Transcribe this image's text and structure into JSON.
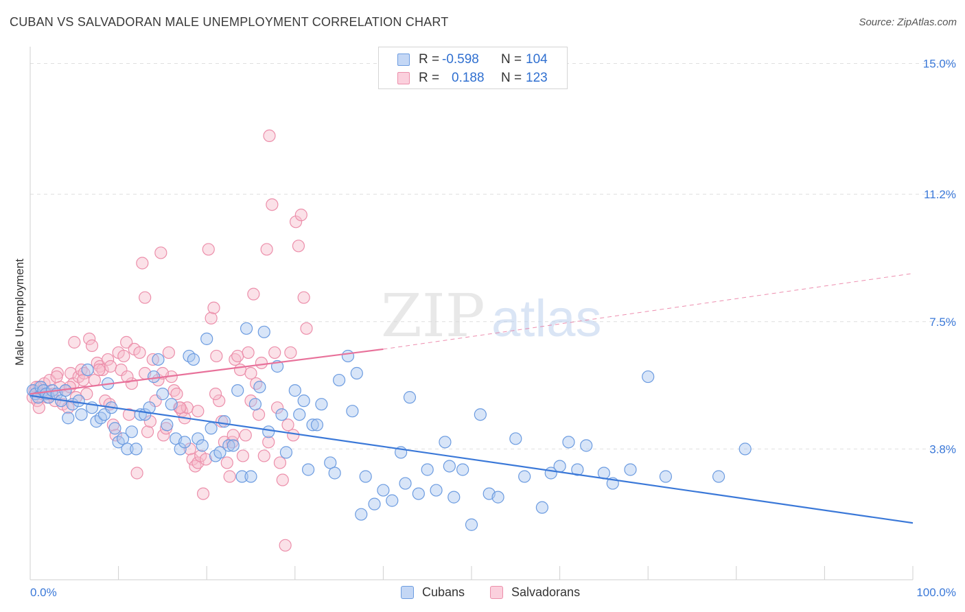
{
  "header": {
    "title": "CUBAN VS SALVADORAN MALE UNEMPLOYMENT CORRELATION CHART",
    "source": "Source: ZipAtlas.com"
  },
  "watermark": {
    "zip": "ZIP",
    "atlas": "atlas"
  },
  "legend": {
    "rows": [
      {
        "r_label": "R =",
        "r_value": "-0.598",
        "n_label": "N =",
        "n_value": "104",
        "color": "#8fb3ea"
      },
      {
        "r_label": "R =",
        "r_value": "0.188",
        "n_label": "N =",
        "n_value": "123",
        "color": "#f4a6bd"
      }
    ]
  },
  "bottom_legend": [
    {
      "label": "Cubans",
      "fill": "#c4d7f5",
      "stroke": "#6b9be0"
    },
    {
      "label": "Salvadorans",
      "fill": "#fbd0dd",
      "stroke": "#ec8eaa"
    }
  ],
  "chart_data": {
    "type": "scatter",
    "title": "CUBAN VS SALVADORAN MALE UNEMPLOYMENT CORRELATION CHART",
    "xlabel": "",
    "ylabel": "Male Unemployment",
    "xlim": [
      0,
      100
    ],
    "ylim": [
      0,
      15.35
    ],
    "x_tick_labels": [
      "0.0%",
      "100.0%"
    ],
    "y_ticks": [
      3.8,
      7.5,
      11.2,
      15.0
    ],
    "y_tick_labels": [
      "3.8%",
      "7.5%",
      "11.2%",
      "15.0%"
    ],
    "grid": "horizontal dashed",
    "colors": {
      "cubans": "#3a78d8",
      "salvadorans": "#e8719a",
      "axis_text": "#3a78d8"
    },
    "series": [
      {
        "name": "Cubans",
        "trend": {
          "x0": 0,
          "y0": 5.35,
          "x1": 100,
          "y1": 1.65
        },
        "points": [
          [
            0.3,
            5.5
          ],
          [
            0.6,
            5.4
          ],
          [
            0.9,
            5.3
          ],
          [
            1.2,
            5.6
          ],
          [
            1.5,
            5.5
          ],
          [
            1.8,
            5.4
          ],
          [
            2.1,
            5.3
          ],
          [
            2.5,
            5.5
          ],
          [
            3.0,
            5.4
          ],
          [
            3.5,
            5.2
          ],
          [
            4.0,
            5.5
          ],
          [
            4.3,
            4.7
          ],
          [
            4.8,
            5.1
          ],
          [
            5.5,
            5.2
          ],
          [
            5.8,
            4.8
          ],
          [
            6.5,
            6.1
          ],
          [
            7.0,
            5.0
          ],
          [
            7.5,
            4.6
          ],
          [
            8.0,
            4.7
          ],
          [
            8.4,
            4.8
          ],
          [
            8.8,
            5.7
          ],
          [
            9.2,
            5.0
          ],
          [
            9.6,
            4.4
          ],
          [
            10.0,
            4.0
          ],
          [
            10.5,
            4.1
          ],
          [
            11.0,
            3.8
          ],
          [
            11.5,
            4.3
          ],
          [
            12.0,
            3.8
          ],
          [
            12.5,
            4.8
          ],
          [
            13.0,
            4.8
          ],
          [
            13.5,
            5.0
          ],
          [
            14.0,
            5.9
          ],
          [
            14.5,
            6.4
          ],
          [
            15.0,
            5.4
          ],
          [
            15.5,
            4.5
          ],
          [
            16.0,
            5.1
          ],
          [
            16.5,
            4.1
          ],
          [
            17.0,
            3.8
          ],
          [
            17.5,
            4.0
          ],
          [
            18.0,
            6.5
          ],
          [
            18.5,
            6.4
          ],
          [
            19.0,
            4.1
          ],
          [
            19.5,
            3.9
          ],
          [
            20.0,
            7.0
          ],
          [
            20.5,
            4.4
          ],
          [
            21.0,
            3.6
          ],
          [
            21.5,
            3.7
          ],
          [
            22.0,
            4.6
          ],
          [
            22.5,
            3.9
          ],
          [
            23.0,
            3.9
          ],
          [
            23.5,
            5.5
          ],
          [
            24.0,
            3.0
          ],
          [
            24.5,
            7.3
          ],
          [
            25.0,
            3.0
          ],
          [
            25.5,
            5.1
          ],
          [
            26.0,
            5.6
          ],
          [
            26.5,
            7.2
          ],
          [
            27.0,
            4.3
          ],
          [
            28.0,
            6.2
          ],
          [
            28.5,
            4.8
          ],
          [
            29.0,
            3.7
          ],
          [
            30.0,
            5.5
          ],
          [
            30.5,
            4.8
          ],
          [
            31.0,
            5.2
          ],
          [
            31.5,
            3.2
          ],
          [
            32.0,
            4.5
          ],
          [
            32.5,
            4.5
          ],
          [
            33.0,
            5.1
          ],
          [
            34.0,
            3.4
          ],
          [
            34.5,
            3.1
          ],
          [
            35.0,
            5.8
          ],
          [
            36.0,
            6.5
          ],
          [
            36.5,
            4.9
          ],
          [
            37.0,
            6.0
          ],
          [
            37.5,
            1.9
          ],
          [
            38.0,
            3.0
          ],
          [
            39.0,
            2.2
          ],
          [
            40.0,
            2.6
          ],
          [
            41.0,
            2.3
          ],
          [
            42.0,
            3.7
          ],
          [
            42.5,
            2.8
          ],
          [
            43.0,
            5.3
          ],
          [
            44.0,
            2.5
          ],
          [
            45.0,
            3.2
          ],
          [
            46.0,
            2.6
          ],
          [
            47.0,
            4.0
          ],
          [
            47.5,
            3.3
          ],
          [
            48.0,
            2.4
          ],
          [
            49.0,
            3.2
          ],
          [
            50.0,
            1.6
          ],
          [
            51.0,
            4.8
          ],
          [
            52.0,
            2.5
          ],
          [
            53.0,
            2.4
          ],
          [
            55.0,
            4.1
          ],
          [
            56.0,
            3.0
          ],
          [
            58.0,
            2.1
          ],
          [
            59.0,
            3.1
          ],
          [
            60.0,
            3.3
          ],
          [
            61.0,
            4.0
          ],
          [
            62.0,
            3.2
          ],
          [
            63.0,
            3.9
          ],
          [
            65.0,
            3.1
          ],
          [
            66.0,
            2.8
          ],
          [
            68.0,
            3.2
          ],
          [
            70.0,
            5.9
          ],
          [
            72.0,
            3.0
          ],
          [
            78.0,
            3.0
          ],
          [
            81.0,
            3.8
          ]
        ]
      },
      {
        "name": "Salvadorans",
        "trend": {
          "x0": 0,
          "y0": 5.4,
          "x1": 40,
          "y1": 6.7,
          "dash_to_x": 100,
          "dash_to_y": 8.9
        },
        "points": [
          [
            0.3,
            5.3
          ],
          [
            0.5,
            5.5
          ],
          [
            0.8,
            5.2
          ],
          [
            1.0,
            5.6
          ],
          [
            1.3,
            5.4
          ],
          [
            1.6,
            5.7
          ],
          [
            1.9,
            5.3
          ],
          [
            2.2,
            5.8
          ],
          [
            2.5,
            5.4
          ],
          [
            2.8,
            5.2
          ],
          [
            3.1,
            6.0
          ],
          [
            3.4,
            5.6
          ],
          [
            3.7,
            5.1
          ],
          [
            4.0,
            5.5
          ],
          [
            4.3,
            5.0
          ],
          [
            4.6,
            6.0
          ],
          [
            4.9,
            5.7
          ],
          [
            5.2,
            5.3
          ],
          [
            5.5,
            5.9
          ],
          [
            5.8,
            6.1
          ],
          [
            6.1,
            6.0
          ],
          [
            6.4,
            5.4
          ],
          [
            6.7,
            7.0
          ],
          [
            7.0,
            6.8
          ],
          [
            7.3,
            5.8
          ],
          [
            7.6,
            6.3
          ],
          [
            7.9,
            6.2
          ],
          [
            8.2,
            6.1
          ],
          [
            8.5,
            5.2
          ],
          [
            8.8,
            6.4
          ],
          [
            9.1,
            6.2
          ],
          [
            9.4,
            4.5
          ],
          [
            9.7,
            4.2
          ],
          [
            10.0,
            6.6
          ],
          [
            10.3,
            6.1
          ],
          [
            10.6,
            6.5
          ],
          [
            10.9,
            6.9
          ],
          [
            11.2,
            4.8
          ],
          [
            11.5,
            5.7
          ],
          [
            11.8,
            6.7
          ],
          [
            12.1,
            3.1
          ],
          [
            12.4,
            6.6
          ],
          [
            12.7,
            9.2
          ],
          [
            13.0,
            8.2
          ],
          [
            13.3,
            4.3
          ],
          [
            13.6,
            4.6
          ],
          [
            13.9,
            6.4
          ],
          [
            14.2,
            5.2
          ],
          [
            14.5,
            5.8
          ],
          [
            14.8,
            9.5
          ],
          [
            15.1,
            4.2
          ],
          [
            15.4,
            4.4
          ],
          [
            15.7,
            6.6
          ],
          [
            16.0,
            5.9
          ],
          [
            16.3,
            5.5
          ],
          [
            16.6,
            5.4
          ],
          [
            16.9,
            5.0
          ],
          [
            17.2,
            4.9
          ],
          [
            17.5,
            4.7
          ],
          [
            17.8,
            5.0
          ],
          [
            18.1,
            3.8
          ],
          [
            18.4,
            3.5
          ],
          [
            18.7,
            3.3
          ],
          [
            19.0,
            3.4
          ],
          [
            19.3,
            3.6
          ],
          [
            19.6,
            2.5
          ],
          [
            19.9,
            3.5
          ],
          [
            20.2,
            9.6
          ],
          [
            20.5,
            7.6
          ],
          [
            20.8,
            7.9
          ],
          [
            21.1,
            6.5
          ],
          [
            21.4,
            5.2
          ],
          [
            21.7,
            4.6
          ],
          [
            22.0,
            4.0
          ],
          [
            22.3,
            3.4
          ],
          [
            22.6,
            3.0
          ],
          [
            22.9,
            4.0
          ],
          [
            23.2,
            6.4
          ],
          [
            23.5,
            6.5
          ],
          [
            23.8,
            6.1
          ],
          [
            24.1,
            3.6
          ],
          [
            24.4,
            4.2
          ],
          [
            24.7,
            6.6
          ],
          [
            25.0,
            6.0
          ],
          [
            25.3,
            8.3
          ],
          [
            25.6,
            5.7
          ],
          [
            25.9,
            4.8
          ],
          [
            26.2,
            6.3
          ],
          [
            26.5,
            3.6
          ],
          [
            26.8,
            9.6
          ],
          [
            27.1,
            12.9
          ],
          [
            27.4,
            10.9
          ],
          [
            27.7,
            6.6
          ],
          [
            28.0,
            5.0
          ],
          [
            28.3,
            3.4
          ],
          [
            28.6,
            2.9
          ],
          [
            28.9,
            1.0
          ],
          [
            29.2,
            4.5
          ],
          [
            29.5,
            6.6
          ],
          [
            29.8,
            4.2
          ],
          [
            30.1,
            10.4
          ],
          [
            30.4,
            9.7
          ],
          [
            30.7,
            10.6
          ],
          [
            31.0,
            8.2
          ],
          [
            31.3,
            7.3
          ],
          [
            5.0,
            6.9
          ],
          [
            6.0,
            5.8
          ],
          [
            9.0,
            5.1
          ],
          [
            11.0,
            5.9
          ],
          [
            13.0,
            6.0
          ],
          [
            15.0,
            6.0
          ],
          [
            17.0,
            5.0
          ],
          [
            19.0,
            4.9
          ],
          [
            21.0,
            5.4
          ],
          [
            23.0,
            4.2
          ],
          [
            25.0,
            5.2
          ],
          [
            27.0,
            4.0
          ],
          [
            3.0,
            5.9
          ],
          [
            2.0,
            5.4
          ],
          [
            1.0,
            5.0
          ],
          [
            0.7,
            5.6
          ],
          [
            4.5,
            5.6
          ],
          [
            7.8,
            6.1
          ]
        ]
      }
    ]
  }
}
